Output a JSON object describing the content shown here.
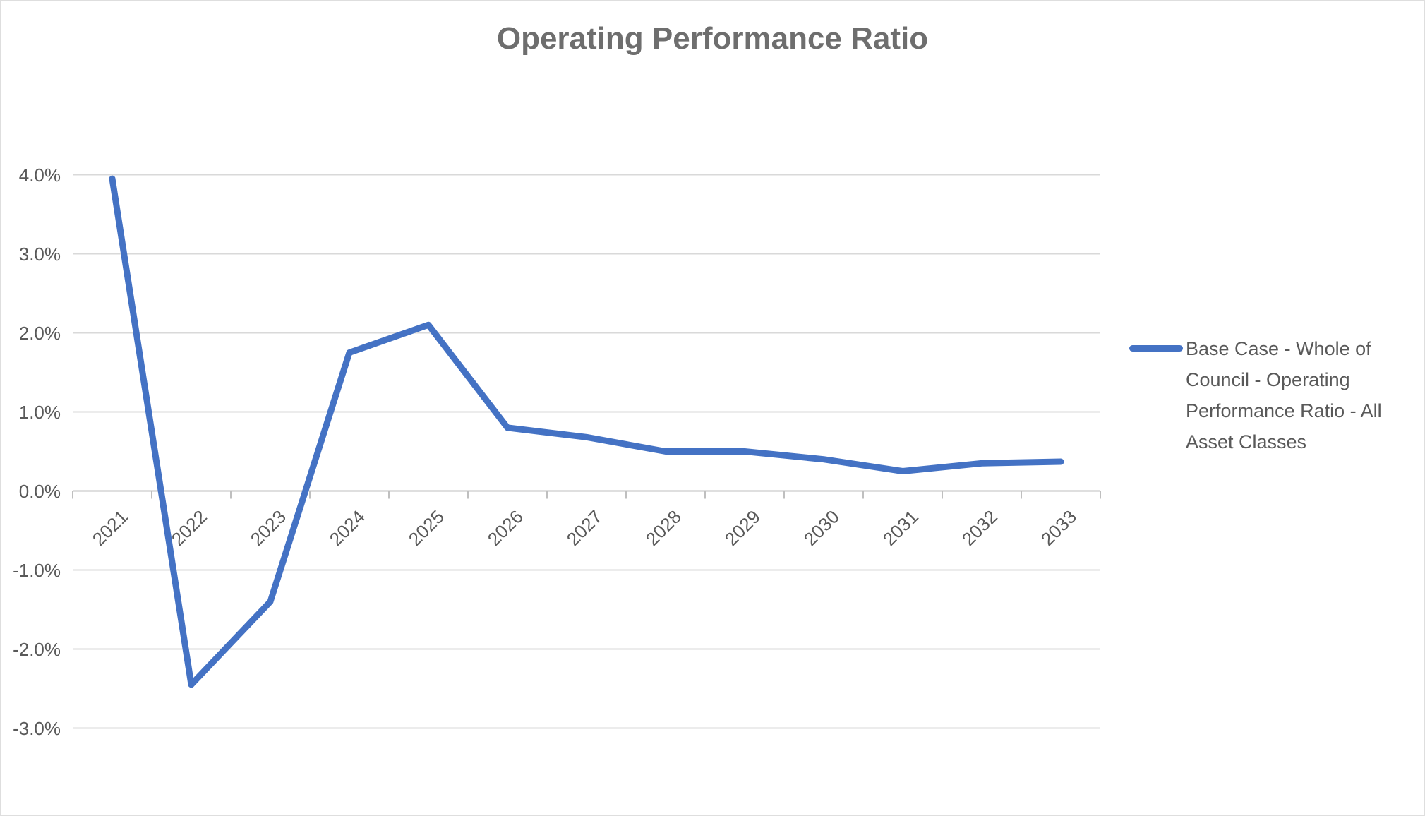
{
  "chart_data": {
    "type": "line",
    "title": "Operating Performance Ratio",
    "categories": [
      "2021",
      "2022",
      "2023",
      "2024",
      "2025",
      "2026",
      "2027",
      "2028",
      "2029",
      "2030",
      "2031",
      "2032",
      "2033"
    ],
    "series": [
      {
        "name": "Base Case - Whole of Council - Operating Performance Ratio - All Asset Classes",
        "values": [
          3.95,
          -2.45,
          -1.4,
          1.75,
          2.1,
          0.8,
          0.68,
          0.5,
          0.5,
          0.4,
          0.25,
          0.35,
          0.37
        ]
      }
    ],
    "xlabel": "",
    "ylabel": "",
    "y_ticks": [
      4,
      3,
      2,
      1,
      0,
      -1,
      -2,
      -3
    ],
    "y_tick_labels": [
      "4.0%",
      "3.0%",
      "2.0%",
      "1.0%",
      "0.0%",
      "-1.0%",
      "-2.0%",
      "-3.0%"
    ],
    "ylim": [
      -3,
      4
    ],
    "grid": true,
    "legend_position": "right",
    "colors": {
      "series_line": "#4472c4",
      "gridline": "#d9d9d9",
      "axis_line": "#bfbfbf",
      "title_text": "#6e6e6e",
      "label_text": "#595959"
    }
  }
}
